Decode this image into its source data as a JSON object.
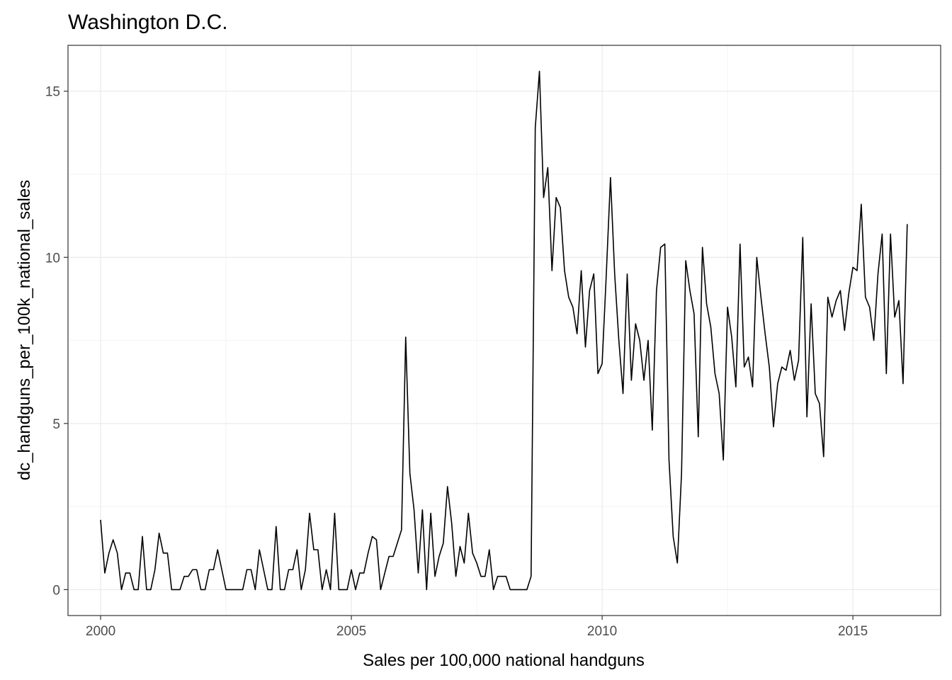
{
  "chart_data": {
    "type": "line",
    "title": "Washington D.C.",
    "xlabel": "Sales per 100,000 national handguns",
    "ylabel": "dc_handguns_per_100k_national_sales",
    "xlim": [
      1999.35,
      2016.75
    ],
    "ylim": [
      -0.78,
      16.38
    ],
    "x_ticks": [
      2000,
      2005,
      2010,
      2015
    ],
    "x_tick_labels": [
      "2000",
      "2005",
      "2010",
      "2015"
    ],
    "y_ticks": [
      0,
      5,
      10,
      15
    ],
    "y_tick_labels": [
      "0",
      "5",
      "10",
      "15"
    ],
    "grid": true,
    "legend": "none",
    "line_color": "#000000",
    "series": [
      {
        "x_start": 2000.0,
        "x_step": 0.0833333,
        "values": [
          2.1,
          0.5,
          1.1,
          1.5,
          1.1,
          0.0,
          0.5,
          0.5,
          0.0,
          0.0,
          1.6,
          0.0,
          0.0,
          0.6,
          1.7,
          1.1,
          1.1,
          0.0,
          0.0,
          0.0,
          0.4,
          0.4,
          0.6,
          0.6,
          0.0,
          0.0,
          0.6,
          0.6,
          1.2,
          0.6,
          0.0,
          0.0,
          0.0,
          0.0,
          0.0,
          0.6,
          0.6,
          0.0,
          1.2,
          0.6,
          0.0,
          0.0,
          1.9,
          0.0,
          0.0,
          0.6,
          0.6,
          1.2,
          0.0,
          0.6,
          2.3,
          1.2,
          1.2,
          0.0,
          0.6,
          0.0,
          2.3,
          0.0,
          0.0,
          0.0,
          0.6,
          0.0,
          0.5,
          0.5,
          1.1,
          1.6,
          1.5,
          0.0,
          0.5,
          1.0,
          1.0,
          1.4,
          1.8,
          7.6,
          3.5,
          2.4,
          0.5,
          2.4,
          0.0,
          2.3,
          0.4,
          1.0,
          1.4,
          3.1,
          2.0,
          0.4,
          1.3,
          0.8,
          2.3,
          1.1,
          0.8,
          0.4,
          0.4,
          1.2,
          0.0,
          0.4,
          0.4,
          0.4,
          0.0,
          0.0,
          0.0,
          0.0,
          0.0,
          0.4,
          13.9,
          15.6,
          11.8,
          12.7,
          9.6,
          11.8,
          11.5,
          9.6,
          8.8,
          8.5,
          7.7,
          9.6,
          7.3,
          9.0,
          9.5,
          6.5,
          6.8,
          9.5,
          12.4,
          9.5,
          7.5,
          5.9,
          9.5,
          6.3,
          8.0,
          7.5,
          6.3,
          7.5,
          4.8,
          9.0,
          10.3,
          10.4,
          3.9,
          1.6,
          0.8,
          3.5,
          9.9,
          9.0,
          8.3,
          4.6,
          10.3,
          8.6,
          7.9,
          6.5,
          5.9,
          3.9,
          8.5,
          7.6,
          6.1,
          10.4,
          6.7,
          7.0,
          6.1,
          10.0,
          8.8,
          7.7,
          6.7,
          4.9,
          6.2,
          6.7,
          6.6,
          7.2,
          6.3,
          6.9,
          10.6,
          5.2,
          8.6,
          5.9,
          5.6,
          4.0,
          8.8,
          8.2,
          8.7,
          9.0,
          7.8,
          8.9,
          9.7,
          9.6,
          11.6,
          8.8,
          8.5,
          7.5,
          9.5,
          10.7,
          6.5,
          10.7,
          8.2,
          8.7,
          6.2,
          11.0
        ]
      }
    ]
  }
}
